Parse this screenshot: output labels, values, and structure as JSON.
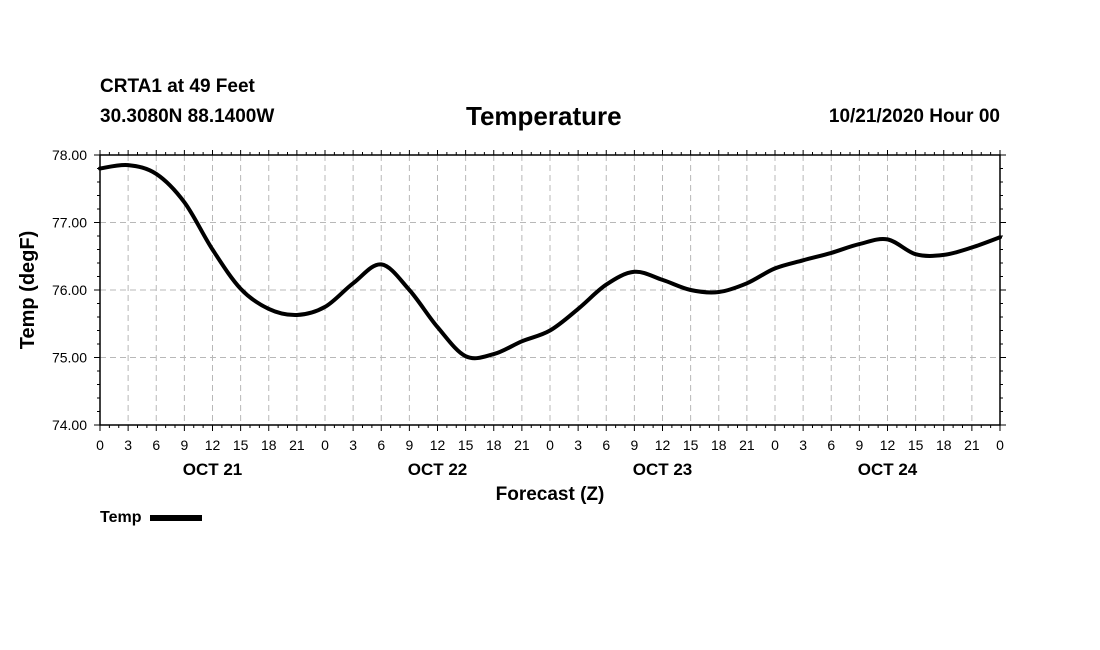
{
  "header": {
    "station": "CRTA1 at 49 Feet",
    "coords": "30.3080N 88.1400W",
    "title": "Temperature",
    "datetime": "10/21/2020 Hour 00"
  },
  "chart_data": {
    "type": "line",
    "title": "Temperature",
    "xlabel": "Forecast (Z)",
    "ylabel": "Temp (degF)",
    "ylim": [
      74.0,
      78.0
    ],
    "xlim": [
      0,
      96
    ],
    "yticks": [
      "74.00",
      "75.00",
      "76.00",
      "77.00",
      "78.00"
    ],
    "x_tick_labels": [
      "0",
      "3",
      "6",
      "9",
      "12",
      "15",
      "18",
      "21",
      "0",
      "3",
      "6",
      "9",
      "12",
      "15",
      "18",
      "21",
      "0",
      "3",
      "6",
      "9",
      "12",
      "15",
      "18",
      "21",
      "0",
      "3",
      "6",
      "9",
      "12",
      "15",
      "18",
      "21",
      "0"
    ],
    "day_labels": [
      {
        "label": "OCT 21",
        "hour": 12
      },
      {
        "label": "OCT 22",
        "hour": 36
      },
      {
        "label": "OCT 23",
        "hour": 60
      },
      {
        "label": "OCT 24",
        "hour": 84
      }
    ],
    "grid": true,
    "legend": "bottom-left",
    "series": [
      {
        "name": "Temp",
        "x": [
          0,
          3,
          6,
          9,
          12,
          15,
          18,
          21,
          24,
          27,
          30,
          33,
          36,
          39,
          42,
          45,
          48,
          51,
          54,
          57,
          60,
          63,
          66,
          69,
          72,
          75,
          78,
          81,
          84,
          87,
          90,
          93,
          96
        ],
        "values": [
          77.8,
          77.85,
          77.72,
          77.3,
          76.6,
          76.02,
          75.72,
          75.63,
          75.75,
          76.1,
          76.38,
          76.0,
          75.45,
          75.02,
          75.05,
          75.24,
          75.4,
          75.72,
          76.08,
          76.27,
          76.15,
          76.0,
          75.97,
          76.1,
          76.32,
          76.44,
          76.55,
          76.68,
          76.75,
          76.53,
          76.52,
          76.63,
          76.78
        ]
      }
    ]
  }
}
